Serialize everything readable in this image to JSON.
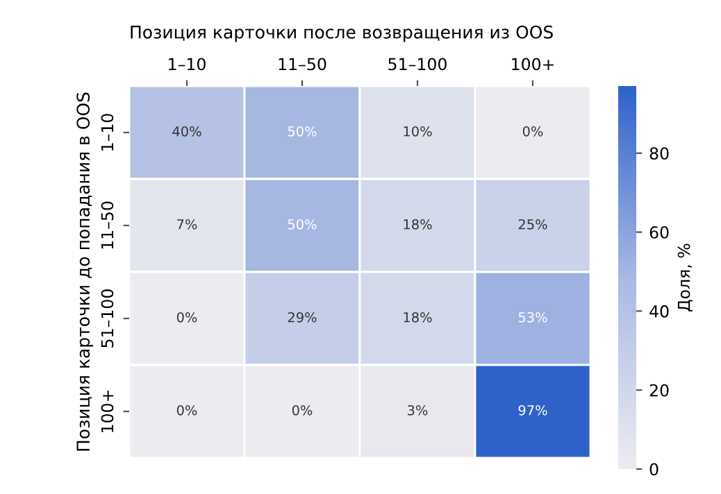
{
  "chart_data": {
    "type": "heatmap",
    "xlabel": "Позиция карточки после возвращения из OOS",
    "ylabel": "Позиция карточки до попадания в OOS",
    "clabel": "Доля, %",
    "categories": [
      "1–10",
      "11–50",
      "51–100",
      "100+"
    ],
    "y_categories": [
      "1–10",
      "11–50",
      "51–100",
      "100+"
    ],
    "cells": [
      [
        40,
        50,
        10,
        0
      ],
      [
        7,
        50,
        18,
        25
      ],
      [
        0,
        29,
        18,
        53
      ],
      [
        0,
        0,
        3,
        97
      ]
    ],
    "cell_labels": [
      [
        "40%",
        "50%",
        "10%",
        "0%"
      ],
      [
        "7%",
        "50%",
        "18%",
        "25%"
      ],
      [
        "0%",
        "29%",
        "18%",
        "53%"
      ],
      [
        "0%",
        "0%",
        "3%",
        "97%"
      ]
    ],
    "clim": [
      0,
      97
    ],
    "cticks": [
      0,
      20,
      40,
      60,
      80
    ]
  }
}
